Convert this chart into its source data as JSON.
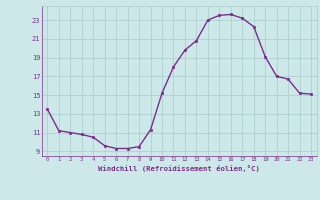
{
  "hours": [
    0,
    1,
    2,
    3,
    4,
    5,
    6,
    7,
    8,
    9,
    10,
    11,
    12,
    13,
    14,
    15,
    16,
    17,
    18,
    19,
    20,
    21,
    22,
    23
  ],
  "windchill": [
    13.5,
    11.2,
    11.0,
    10.8,
    10.5,
    9.6,
    9.3,
    9.3,
    9.5,
    11.3,
    15.2,
    18.0,
    19.8,
    20.8,
    23.0,
    23.5,
    23.6,
    23.2,
    22.3,
    19.1,
    17.0,
    16.7,
    15.2,
    15.1
  ],
  "line_color": "#7b2d8b",
  "marker_color": "#7b2d8b",
  "bg_color": "#cde8e8",
  "grid_color": "#aacccc",
  "tick_color": "#7b2d8b",
  "label_color": "#7b2d8b",
  "xlabel": "Windchill (Refroidissement éolien,°C)",
  "ylim": [
    8.5,
    24.5
  ],
  "yticks": [
    9,
    11,
    13,
    15,
    17,
    19,
    21,
    23
  ],
  "xlim": [
    -0.5,
    23.5
  ],
  "xticks": [
    0,
    1,
    2,
    3,
    4,
    5,
    6,
    7,
    8,
    9,
    10,
    11,
    12,
    13,
    14,
    15,
    16,
    17,
    18,
    19,
    20,
    21,
    22,
    23
  ]
}
